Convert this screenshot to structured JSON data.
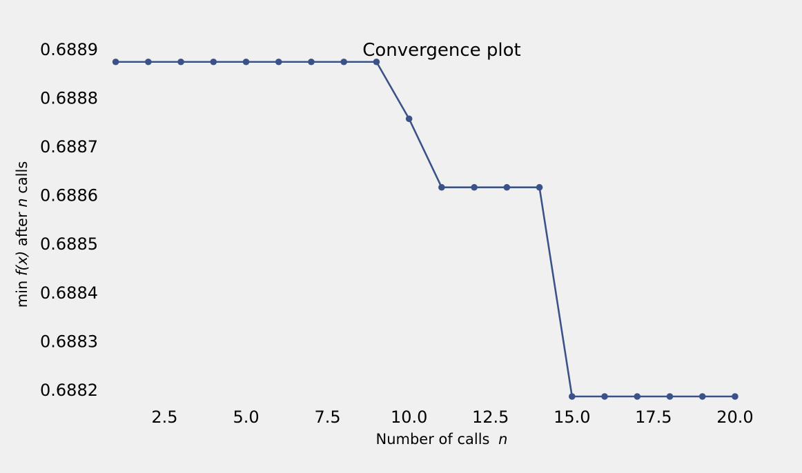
{
  "chart_data": {
    "type": "line",
    "title": "Convergence plot",
    "xlabel": "Number of calls",
    "xlabel_var": "n",
    "ylabel": "min f(x) after n calls",
    "ylabel_parts": {
      "pre": "min",
      "fx": "f(x)",
      "mid": " after ",
      "n": "n",
      "post": " calls"
    },
    "xlim": [
      0.5,
      20.7
    ],
    "ylim": [
      0.68817,
      0.68892
    ],
    "xticks": [
      2.5,
      5.0,
      7.5,
      10.0,
      12.5,
      15.0,
      17.5,
      20.0
    ],
    "xtick_labels": [
      "2.5",
      "5.0",
      "7.5",
      "10.0",
      "12.5",
      "15.0",
      "17.5",
      "20.0"
    ],
    "yticks": [
      0.6889,
      0.6888,
      0.6887,
      0.6886,
      0.6885,
      0.6884,
      0.6883,
      0.6882
    ],
    "ytick_labels": [
      "0.6889",
      "0.6888",
      "0.6887",
      "0.6886",
      "0.6885",
      "0.6884",
      "0.6883",
      "0.6882"
    ],
    "grid": false,
    "series": [
      {
        "color": "#3b5289",
        "marker": "circle",
        "x": [
          1,
          2,
          3,
          4,
          5,
          6,
          7,
          8,
          9,
          10,
          11,
          12,
          13,
          14,
          15,
          16,
          17,
          18,
          19,
          20
        ],
        "values": [
          0.688875,
          0.688875,
          0.688875,
          0.688875,
          0.688875,
          0.688875,
          0.688875,
          0.688875,
          0.688875,
          0.688758,
          0.688617,
          0.688617,
          0.688617,
          0.688617,
          0.688187,
          0.688187,
          0.688187,
          0.688187,
          0.688187,
          0.688187
        ]
      }
    ]
  }
}
